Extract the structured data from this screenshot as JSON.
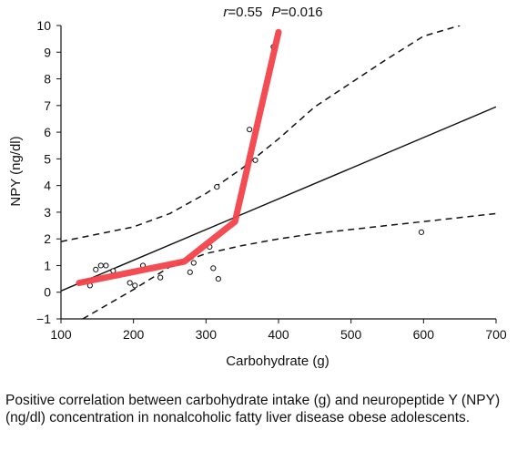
{
  "chart_data": {
    "type": "scatter",
    "stat_r_label": "r",
    "stat_r_value": "=0.55",
    "stat_p_label": "P",
    "stat_p_value": "=0.016",
    "xlabel": "Carbohydrate (g)",
    "ylabel": "NPY (ng/dl)",
    "xlim": [
      100,
      700
    ],
    "ylim": [
      -1,
      10
    ],
    "x_ticks": [
      100,
      200,
      300,
      400,
      500,
      600,
      700
    ],
    "y_ticks": [
      -1,
      0,
      1,
      2,
      3,
      4,
      5,
      6,
      7,
      8,
      9,
      10
    ],
    "x_tick_labels": [
      "100",
      "200",
      "300",
      "400",
      "500",
      "600",
      "700"
    ],
    "y_tick_labels": [
      "−1",
      "0",
      "1",
      "2",
      "3",
      "4",
      "5",
      "6",
      "7",
      "8",
      "9",
      "10"
    ],
    "grid": false,
    "points": [
      {
        "x": 140,
        "y": 0.25
      },
      {
        "x": 148,
        "y": 0.85
      },
      {
        "x": 155,
        "y": 1.0
      },
      {
        "x": 162,
        "y": 1.0
      },
      {
        "x": 172,
        "y": 0.8
      },
      {
        "x": 195,
        "y": 0.35
      },
      {
        "x": 202,
        "y": 0.25
      },
      {
        "x": 213,
        "y": 1.0
      },
      {
        "x": 237,
        "y": 0.55
      },
      {
        "x": 278,
        "y": 0.75
      },
      {
        "x": 283,
        "y": 1.1
      },
      {
        "x": 305,
        "y": 1.7
      },
      {
        "x": 310,
        "y": 0.9
      },
      {
        "x": 315,
        "y": 3.95
      },
      {
        "x": 317,
        "y": 0.5
      },
      {
        "x": 360,
        "y": 6.1
      },
      {
        "x": 368,
        "y": 4.95
      },
      {
        "x": 393,
        "y": 9.2
      },
      {
        "x": 597,
        "y": 2.25
      }
    ],
    "regression_line": {
      "x": [
        100,
        700
      ],
      "y": [
        0.05,
        6.95
      ]
    },
    "confidence_upper": {
      "x": [
        100,
        200,
        250,
        300,
        350,
        400,
        450,
        500,
        550,
        600,
        650
      ],
      "y": [
        1.9,
        2.45,
        2.95,
        3.7,
        4.65,
        5.75,
        6.95,
        7.85,
        8.75,
        9.6,
        10.0
      ]
    },
    "confidence_lower": {
      "x": [
        130,
        200,
        250,
        300,
        350,
        400,
        450,
        500,
        550,
        600,
        700
      ],
      "y": [
        -1.0,
        0.1,
        0.95,
        1.45,
        1.75,
        2.0,
        2.2,
        2.35,
        2.5,
        2.65,
        2.95
      ]
    },
    "trend_highlight": {
      "color": "#f2424a",
      "x": [
        125,
        270,
        340,
        400
      ],
      "y": [
        0.35,
        1.15,
        2.65,
        9.75
      ]
    }
  },
  "caption": "Positive correlation between carbohydrate intake (g) and neuropeptide Y (NPY) (ng/dl) concentration in nonalcoholic fatty liver disease obese adolescents."
}
